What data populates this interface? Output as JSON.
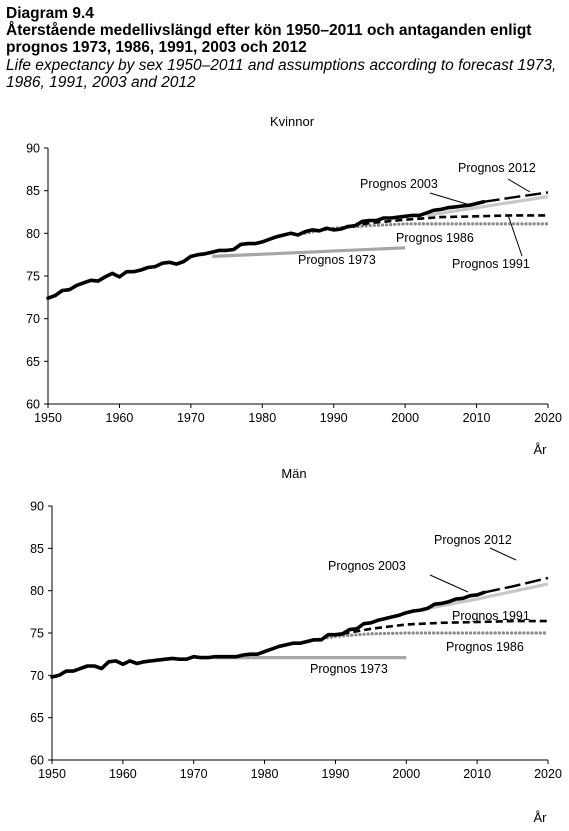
{
  "header": {
    "diagram_label": "Diagram 9.4",
    "title_sv": "Återstående medellivslängd efter kön 1950–2011 och antaganden enligt prognos 1973, 1986, 1991, 2003 och 2012",
    "title_en": "Life expectancy by sex 1950–2011 and assumptions according to forecast 1973, 1986, 1991, 2003 and 2012"
  },
  "colors": {
    "observed": "#000000",
    "prognos_gray": "#a6a6a6",
    "prognos_light": "#c8c8c8",
    "axis": "#000000"
  },
  "chart_data": [
    {
      "type": "line",
      "title": "Kvinnor",
      "xlabel": "År",
      "ylabel": "",
      "xlim": [
        1950,
        2020
      ],
      "ylim": [
        60,
        90
      ],
      "xticks": [
        1950,
        1960,
        1970,
        1980,
        1990,
        2000,
        2010,
        2020
      ],
      "yticks": [
        60,
        65,
        70,
        75,
        80,
        85,
        90
      ],
      "grid": false,
      "series": [
        {
          "key": "observed",
          "style": "observed",
          "x": [
            1950,
            1951,
            1952,
            1953,
            1954,
            1955,
            1956,
            1957,
            1958,
            1959,
            1960,
            1961,
            1962,
            1963,
            1964,
            1965,
            1966,
            1967,
            1968,
            1969,
            1970,
            1971,
            1972,
            1973,
            1974,
            1975,
            1976,
            1977,
            1978,
            1979,
            1980,
            1981,
            1982,
            1983,
            1984,
            1985,
            1986,
            1987,
            1988,
            1989,
            1990,
            1991,
            1992,
            1993,
            1994,
            1995,
            1996,
            1997,
            1998,
            1999,
            2000,
            2001,
            2002,
            2003,
            2004,
            2005,
            2006,
            2007,
            2008,
            2009,
            2010,
            2011
          ],
          "y": [
            72.4,
            72.7,
            73.3,
            73.4,
            73.9,
            74.2,
            74.5,
            74.4,
            74.9,
            75.3,
            74.9,
            75.5,
            75.5,
            75.7,
            76.0,
            76.1,
            76.5,
            76.6,
            76.4,
            76.7,
            77.3,
            77.5,
            77.6,
            77.8,
            78.0,
            78.0,
            78.1,
            78.7,
            78.8,
            78.8,
            79.0,
            79.3,
            79.6,
            79.8,
            80.0,
            79.8,
            80.2,
            80.4,
            80.3,
            80.6,
            80.4,
            80.5,
            80.8,
            80.9,
            81.4,
            81.5,
            81.5,
            81.8,
            81.8,
            81.9,
            82.0,
            82.1,
            82.1,
            82.4,
            82.7,
            82.8,
            83.0,
            83.1,
            83.2,
            83.3,
            83.5,
            83.7
          ]
        },
        {
          "key": "p1973",
          "name": "Prognos 1973",
          "style": "gray-solid",
          "x": [
            1973,
            2000
          ],
          "y": [
            77.3,
            78.3
          ]
        },
        {
          "key": "p1986",
          "name": "Prognos 1986",
          "style": "dotted",
          "x": [
            1986,
            1990,
            1995,
            2000,
            2005,
            2010,
            2015,
            2020
          ],
          "y": [
            80.0,
            80.6,
            80.9,
            81.1,
            81.1,
            81.1,
            81.1,
            81.1
          ]
        },
        {
          "key": "p1991",
          "name": "Prognos 1991",
          "style": "dashed",
          "x": [
            1991,
            1995,
            2000,
            2005,
            2010,
            2015,
            2020
          ],
          "y": [
            80.6,
            81.2,
            81.6,
            81.9,
            82.0,
            82.1,
            82.1
          ]
        },
        {
          "key": "p2003",
          "name": "Prognos 2003",
          "style": "light-solid",
          "x": [
            2003,
            2010,
            2020
          ],
          "y": [
            82.1,
            83.0,
            84.3
          ]
        },
        {
          "key": "p2012",
          "name": "Prognos 2012",
          "style": "black-longdash",
          "x": [
            2011,
            2015,
            2020
          ],
          "y": [
            83.7,
            84.2,
            84.8
          ]
        }
      ],
      "annotations": [
        {
          "text": "Prognos 2012",
          "series": "p2012"
        },
        {
          "text": "Prognos 2003",
          "series": "p2003"
        },
        {
          "text": "Prognos 1986",
          "series": "p1986"
        },
        {
          "text": "Prognos 1991",
          "series": "p1991"
        },
        {
          "text": "Prognos 1973",
          "series": "p1973"
        }
      ]
    },
    {
      "type": "line",
      "title": "Män",
      "xlabel": "År",
      "ylabel": "",
      "xlim": [
        1950,
        2020
      ],
      "ylim": [
        60,
        90
      ],
      "xticks": [
        1950,
        1960,
        1970,
        1980,
        1990,
        2000,
        2010,
        2020
      ],
      "yticks": [
        60,
        65,
        70,
        75,
        80,
        85,
        90
      ],
      "grid": false,
      "series": [
        {
          "key": "observed",
          "style": "observed",
          "x": [
            1950,
            1951,
            1952,
            1953,
            1954,
            1955,
            1956,
            1957,
            1958,
            1959,
            1960,
            1961,
            1962,
            1963,
            1964,
            1965,
            1966,
            1967,
            1968,
            1969,
            1970,
            1971,
            1972,
            1973,
            1974,
            1975,
            1976,
            1977,
            1978,
            1979,
            1980,
            1981,
            1982,
            1983,
            1984,
            1985,
            1986,
            1987,
            1988,
            1989,
            1990,
            1991,
            1992,
            1993,
            1994,
            1995,
            1996,
            1997,
            1998,
            1999,
            2000,
            2001,
            2002,
            2003,
            2004,
            2005,
            2006,
            2007,
            2008,
            2009,
            2010,
            2011
          ],
          "y": [
            69.8,
            70.0,
            70.5,
            70.5,
            70.8,
            71.1,
            71.1,
            70.8,
            71.6,
            71.7,
            71.3,
            71.7,
            71.4,
            71.6,
            71.7,
            71.8,
            71.9,
            72.0,
            71.9,
            71.9,
            72.2,
            72.1,
            72.1,
            72.2,
            72.2,
            72.2,
            72.2,
            72.4,
            72.5,
            72.5,
            72.8,
            73.1,
            73.4,
            73.6,
            73.8,
            73.8,
            74.0,
            74.2,
            74.2,
            74.8,
            74.8,
            74.9,
            75.4,
            75.5,
            76.1,
            76.2,
            76.5,
            76.7,
            76.9,
            77.1,
            77.4,
            77.6,
            77.7,
            77.9,
            78.4,
            78.5,
            78.7,
            79.0,
            79.1,
            79.4,
            79.5,
            79.8
          ]
        },
        {
          "key": "p1973",
          "name": "Prognos 1973",
          "style": "gray-solid",
          "x": [
            1973,
            2000
          ],
          "y": [
            72.1,
            72.1
          ]
        },
        {
          "key": "p1986",
          "name": "Prognos 1986",
          "style": "dotted",
          "x": [
            1986,
            1990,
            1995,
            2000,
            2005,
            2010,
            2015,
            2020
          ],
          "y": [
            74.0,
            74.6,
            74.9,
            75.0,
            75.0,
            75.0,
            75.0,
            75.0
          ]
        },
        {
          "key": "p1991",
          "name": "Prognos 1991",
          "style": "dashed",
          "x": [
            1991,
            1995,
            2000,
            2005,
            2010,
            2015,
            2020
          ],
          "y": [
            74.9,
            75.5,
            76.0,
            76.2,
            76.3,
            76.4,
            76.4
          ]
        },
        {
          "key": "p2003",
          "name": "Prognos 2003",
          "style": "light-solid",
          "x": [
            2003,
            2010,
            2020
          ],
          "y": [
            77.9,
            79.0,
            80.8
          ]
        },
        {
          "key": "p2012",
          "name": "Prognos 2012",
          "style": "black-longdash",
          "x": [
            2011,
            2015,
            2020
          ],
          "y": [
            79.8,
            80.5,
            81.5
          ]
        }
      ],
      "annotations": [
        {
          "text": "Prognos 2012",
          "series": "p2012"
        },
        {
          "text": "Prognos 2003",
          "series": "p2003"
        },
        {
          "text": "Prognos 1991",
          "series": "p1991"
        },
        {
          "text": "Prognos 1986",
          "series": "p1986"
        },
        {
          "text": "Prognos 1973",
          "series": "p1973"
        }
      ]
    }
  ]
}
